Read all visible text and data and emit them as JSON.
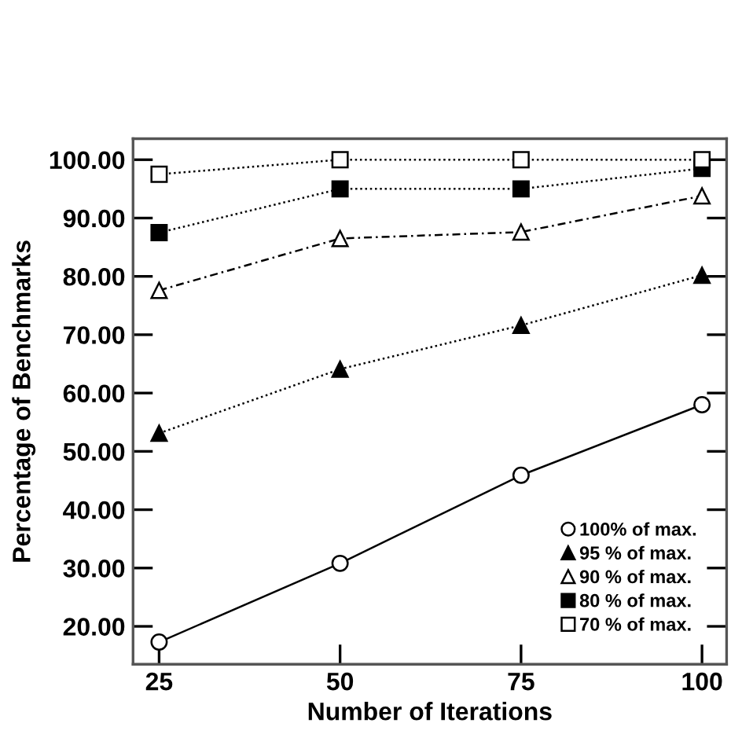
{
  "chart_data": {
    "type": "line",
    "xlabel": "Number of Iterations",
    "ylabel": "Percentage of Benchmarks",
    "x": [
      25,
      50,
      75,
      100
    ],
    "xlim": [
      21.4,
      103.4
    ],
    "xticks": [
      25,
      50,
      75,
      100
    ],
    "ylim": [
      13.5,
      103.6
    ],
    "yticks": [
      {
        "value": 20,
        "label": "20.00"
      },
      {
        "value": 30,
        "label": "30.00"
      },
      {
        "value": 40,
        "label": "40.00"
      },
      {
        "value": 50,
        "label": "50.00"
      },
      {
        "value": 60,
        "label": "60.00"
      },
      {
        "value": 70,
        "label": "70.00"
      },
      {
        "value": 80,
        "label": "80.00"
      },
      {
        "value": 90,
        "label": "90.00"
      },
      {
        "value": 100,
        "label": "100.00"
      }
    ],
    "grid": false,
    "legend": "bottom right",
    "series": [
      {
        "name": "100% of max.",
        "color": "#000000",
        "marker": "circle",
        "line_style": "solid",
        "values": [
          17.3,
          30.8,
          45.9,
          58.0
        ]
      },
      {
        "name": "95 % of max.",
        "color": "#000000",
        "marker": "triangle",
        "line_style": "dotted",
        "values": [
          53.1,
          64.1,
          71.6,
          80.2
        ]
      },
      {
        "name": "90 % of max.",
        "color": "#000000",
        "marker": "triangle",
        "line_style": "dashed",
        "values": [
          77.6,
          86.5,
          87.6,
          93.8
        ]
      },
      {
        "name": "80 % of max.",
        "color": "#000000",
        "marker": "square",
        "line_style": "dotted",
        "values": [
          87.5,
          95.0,
          95.0,
          98.5
        ]
      },
      {
        "name": "70 % of max.",
        "color": "#000000",
        "marker": "square",
        "line_style": "dotted",
        "values": [
          97.5,
          100.0,
          100.0,
          100.0
        ]
      }
    ]
  }
}
